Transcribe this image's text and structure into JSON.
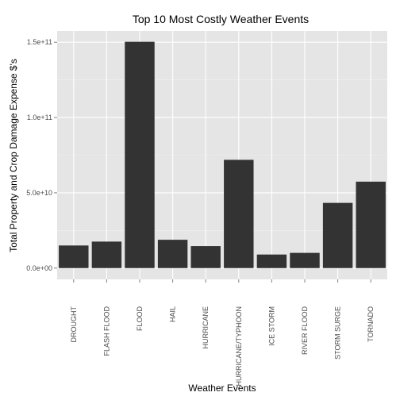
{
  "chart_data": {
    "type": "bar",
    "title": "Top 10 Most Costly Weather Events",
    "xlabel": "Weather Events",
    "ylabel": "Total Property and Crop Damage Expense $'s",
    "categories": [
      "DROUGHT",
      "FLASH FLOOD",
      "FLOOD",
      "HAIL",
      "HURRICANE",
      "HURRICANE/TYPHOON",
      "ICE STORM",
      "RIVER FLOOD",
      "STORM SURGE",
      "TORNADO"
    ],
    "values": [
      15000000000,
      17600000000,
      150300000000,
      18800000000,
      14600000000,
      71900000000,
      9000000000,
      10100000000,
      43300000000,
      57400000000
    ],
    "ylim": [
      -7500000000,
      157500000000
    ],
    "y_ticks": [
      0,
      50000000000,
      100000000000,
      150000000000
    ],
    "y_tick_labels": [
      "0.0e+00",
      "5.0e+10",
      "1.0e+11",
      "1.5e+11"
    ],
    "grid": true,
    "legend": "none",
    "colors": {
      "panel": "#e5e5e5",
      "grid_major": "#ffffff",
      "grid_minor": "#f2f2f2",
      "bar": "#333333",
      "tick_text": "#4d4d4d"
    }
  }
}
